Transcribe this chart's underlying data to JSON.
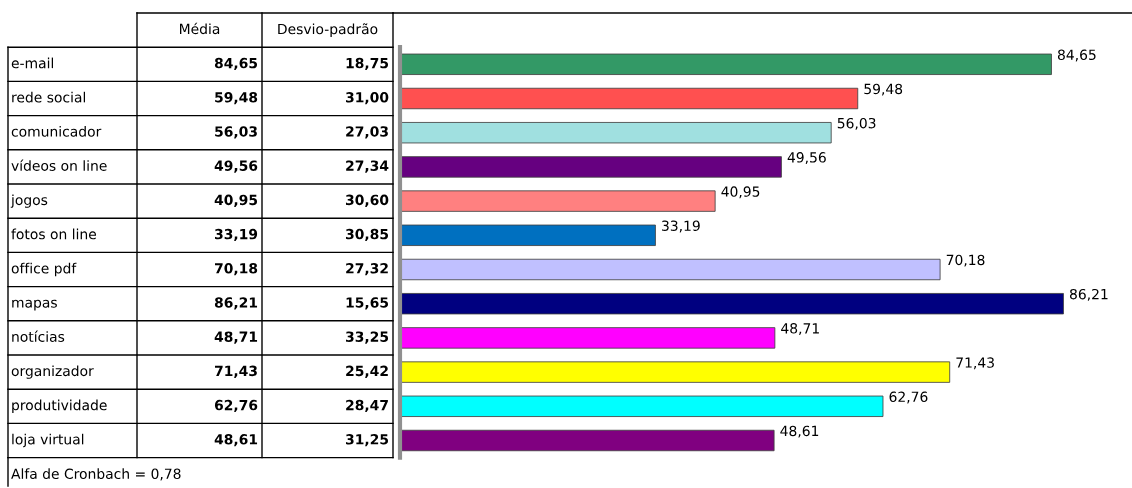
{
  "chart_data": {
    "type": "bar",
    "orientation": "horizontal",
    "categories": [
      "e-mail",
      "rede social",
      "comunicador",
      "vídeos on line",
      "jogos",
      "fotos on line",
      "office pdf",
      "mapas",
      "notícias",
      "organizador",
      "produtividade",
      "loja virtual"
    ],
    "values": [
      84.65,
      59.48,
      56.03,
      49.56,
      40.95,
      33.19,
      70.18,
      86.21,
      48.71,
      71.43,
      62.76,
      48.61
    ],
    "value_labels": [
      "84,65",
      "59,48",
      "56,03",
      "49,56",
      "40,95",
      "33,19",
      "70,18",
      "86,21",
      "48,71",
      "71,43",
      "62,76",
      "48,61"
    ],
    "colors": [
      "#339966",
      "#ff5050",
      "#a0e0e0",
      "#660080",
      "#ff8080",
      "#0070c0",
      "#c0c0ff",
      "#000080",
      "#ff00ff",
      "#ffff00",
      "#00ffff",
      "#800080"
    ],
    "annotations": [
      "Média",
      "Desvio-padrão",
      "18,75",
      "31,00",
      "27,03",
      "27,34",
      "30,60",
      "30,85",
      "27,32",
      "15,65",
      "33,25",
      "25,42",
      "28,47",
      "31,25",
      "Alfa de Cronbach = 0,78"
    ],
    "legend": false
  }
}
